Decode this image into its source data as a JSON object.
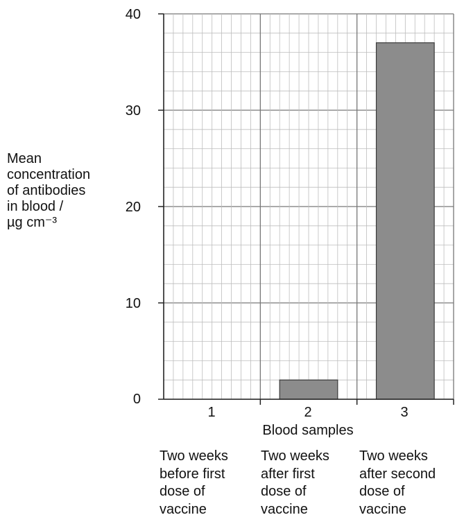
{
  "chart_data": {
    "type": "bar",
    "categories": [
      "1",
      "2",
      "3"
    ],
    "values": [
      0,
      2,
      37
    ],
    "category_descriptions": [
      [
        "Two weeks",
        "before first",
        "dose of",
        "vaccine"
      ],
      [
        "Two weeks",
        "after first",
        "dose of",
        "vaccine"
      ],
      [
        "Two weeks",
        "after second",
        "dose of",
        "vaccine"
      ]
    ],
    "xlabel": "Blood samples",
    "ylabel_lines": [
      "Mean",
      "concentration",
      "of antibodies",
      "in blood /",
      "µg cm⁻³"
    ],
    "ylim": [
      0,
      40
    ],
    "yticks": [
      0,
      10,
      20,
      30,
      40
    ],
    "grid": true,
    "colors": {
      "bar": "#8c8c8c",
      "grid_minor": "#bdbdbd",
      "grid_major": "#777777"
    }
  }
}
